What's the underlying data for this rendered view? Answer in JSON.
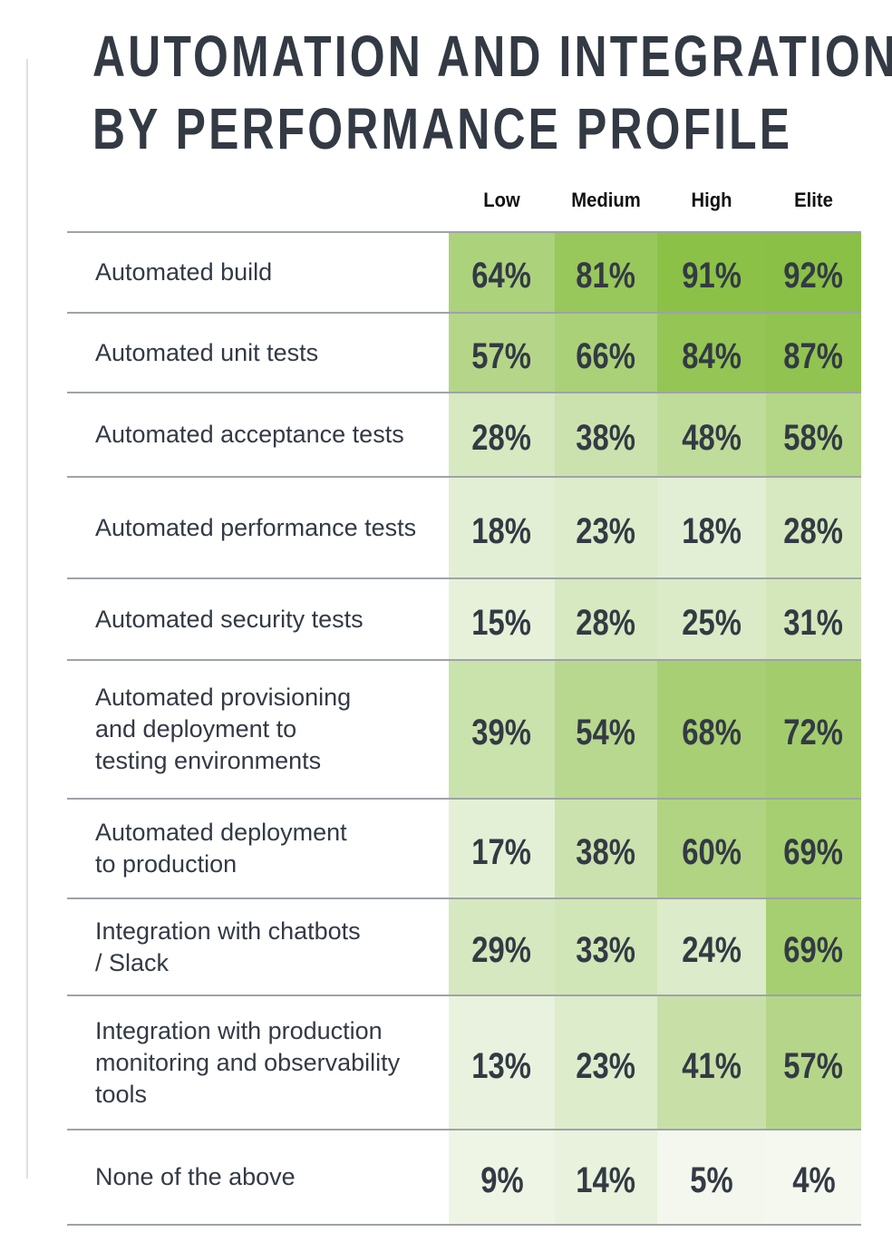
{
  "title_lines": [
    "AUTOMATION AND INTEGRATION",
    "BY PERFORMANCE PROFILE"
  ],
  "chart_data": {
    "type": "heatmap",
    "title": "AUTOMATION AND INTEGRATION BY PERFORMANCE PROFILE",
    "columns": [
      "Low",
      "Medium",
      "High",
      "Elite"
    ],
    "rows": [
      {
        "label": "Automated build",
        "values": [
          64,
          81,
          91,
          92
        ]
      },
      {
        "label": "Automated unit tests",
        "values": [
          57,
          66,
          84,
          87
        ]
      },
      {
        "label": "Automated acceptance tests",
        "values": [
          28,
          38,
          48,
          58
        ]
      },
      {
        "label": "Automated performance tests",
        "values": [
          18,
          23,
          18,
          28
        ]
      },
      {
        "label": "Automated security tests",
        "values": [
          15,
          28,
          25,
          31
        ]
      },
      {
        "label": "Automated provisioning and deployment to testing environments",
        "values": [
          39,
          54,
          68,
          72
        ]
      },
      {
        "label": "Automated deployment to production",
        "values": [
          17,
          38,
          60,
          69
        ]
      },
      {
        "label": "Integration with chatbots / Slack",
        "values": [
          29,
          33,
          24,
          69
        ]
      },
      {
        "label": "Integration with production monitoring and observability tools",
        "values": [
          13,
          23,
          41,
          57
        ]
      },
      {
        "label": "None of the above",
        "values": [
          9,
          14,
          5,
          4
        ]
      }
    ],
    "unit": "%",
    "color_scale": {
      "low": "#f4f8ef",
      "high": "#8bc046"
    }
  }
}
